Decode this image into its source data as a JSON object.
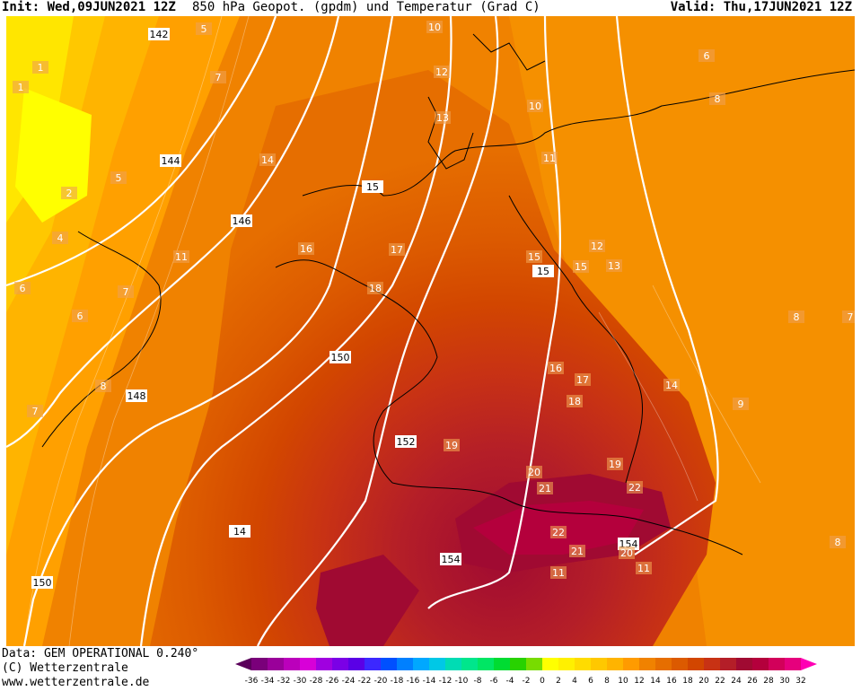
{
  "header": {
    "init": "Init: Wed,09JUN2021 12Z",
    "title": "850 hPa Geopot. (gpdm) und Temperatur (Grad C)",
    "valid": "Valid: Thu,17JUN2021 12Z"
  },
  "footer": {
    "data_line": "Data: GEM OPERATIONAL 0.240°",
    "copyright": "(C) Wetterzentrale",
    "url": "www.wetterzentrale.de"
  },
  "legend": {
    "ticks": [
      "-36",
      "-34",
      "-32",
      "-30",
      "-28",
      "-26",
      "-24",
      "-22",
      "-20",
      "-18",
      "-16",
      "-14",
      "-12",
      "-10",
      "-8",
      "-6",
      "-4",
      "-2",
      "0",
      "2",
      "4",
      "6",
      "8",
      "10",
      "12",
      "14",
      "16",
      "18",
      "20",
      "22",
      "24",
      "26",
      "28",
      "30",
      "32"
    ],
    "colors": [
      "#5a005a",
      "#7a007a",
      "#9a009a",
      "#bb00bb",
      "#d800d8",
      "#a000e0",
      "#7b00e6",
      "#5a00e6",
      "#3c28ff",
      "#0050ff",
      "#0080ff",
      "#00a8ff",
      "#00c8e6",
      "#00dcb4",
      "#00e68c",
      "#00e664",
      "#00dc32",
      "#28d200",
      "#78dc00",
      "#ffff00",
      "#fff000",
      "#ffdc00",
      "#ffc800",
      "#ffb400",
      "#ff9b00",
      "#f08200",
      "#e66e00",
      "#dc5a00",
      "#d24600",
      "#c83214",
      "#b41e28",
      "#a00a32",
      "#b4003c",
      "#d2005a",
      "#e6007d",
      "#ff00b4"
    ]
  },
  "map": {
    "height_labels": [
      "142",
      "144",
      "146",
      "148",
      "150",
      "150",
      "152",
      "154",
      "154",
      "15",
      "15",
      "14"
    ],
    "temp_labels": [
      "5",
      "6",
      "7",
      "8",
      "7",
      "1",
      "1",
      "2",
      "4",
      "5",
      "6",
      "7",
      "8",
      "10",
      "11",
      "12",
      "13",
      "14",
      "15",
      "16",
      "17",
      "18",
      "19",
      "20",
      "21",
      "22",
      "10",
      "11",
      "12",
      "13",
      "14",
      "15",
      "16",
      "17",
      "18",
      "19",
      "20",
      "21",
      "22",
      "11",
      "11",
      "9",
      "8",
      "8",
      "7",
      "6"
    ]
  }
}
